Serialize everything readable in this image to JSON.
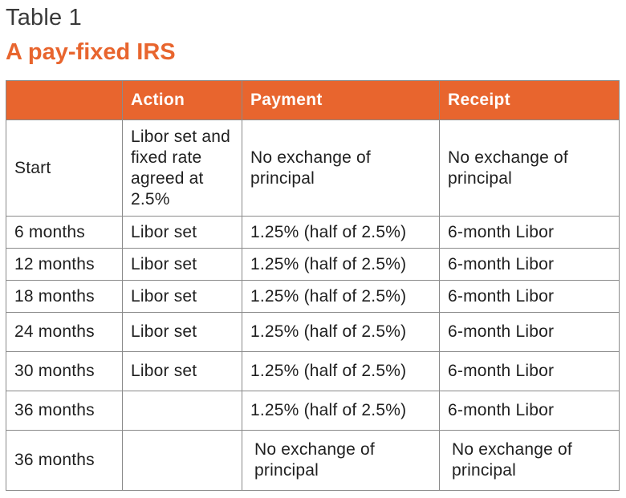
{
  "table_label": "Table 1",
  "table_title": "A pay-fixed IRS",
  "columns": [
    "",
    "Action",
    "Payment",
    "Receipt"
  ],
  "rows": [
    [
      "Start",
      "Libor set and fixed rate agreed at 2.5%",
      "No exchange of principal",
      "No exchange of principal"
    ],
    [
      "6 months",
      "Libor set",
      "1.25% (half of 2.5%)",
      "6-month Libor"
    ],
    [
      "12 months",
      "Libor set",
      "1.25% (half of 2.5%)",
      "6-month Libor"
    ],
    [
      "18 months",
      "Libor set",
      "1.25% (half of 2.5%)",
      "6-month Libor"
    ],
    [
      "24 months",
      "Libor set",
      "1.25% (half of 2.5%)",
      "6-month Libor"
    ],
    [
      "30 months",
      "Libor set",
      "1.25% (half of 2.5%)",
      "6-month Libor"
    ],
    [
      "36 months",
      "",
      "1.25% (half of 2.5%)",
      "6-month Libor"
    ],
    [
      "36 months",
      "",
      "No exchange of principal",
      "No exchange of principal"
    ]
  ],
  "colors": {
    "accent": "#e8652e",
    "header_text": "#ffffff",
    "border": "#8a8a8a"
  }
}
